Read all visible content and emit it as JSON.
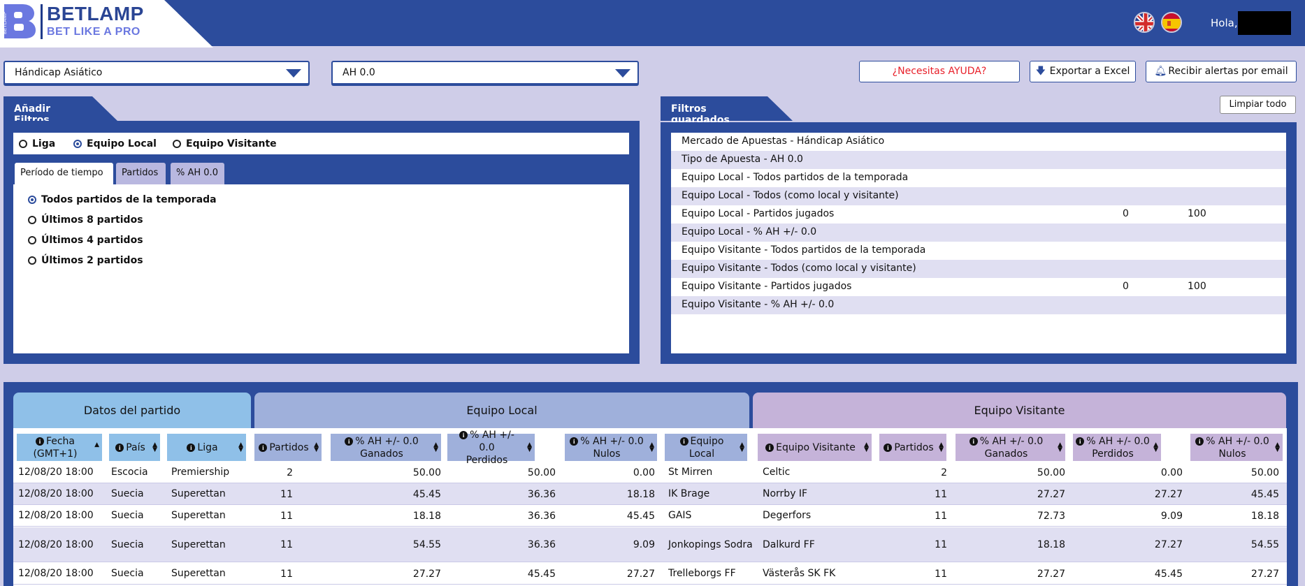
{
  "header": {
    "brand": "BETLAMP",
    "tagline": "BET LIKE A PRO",
    "logo_vertical_text": "BETLAMP",
    "greeting": "Hola,"
  },
  "selectors": {
    "market": "Hándicap Asiático",
    "bet_type": "AH 0.0"
  },
  "actions": {
    "help": "¿Necesitas AYUDA?",
    "export": "Exportar a Excel",
    "alerts": "Recibir alertas por email",
    "clear_all": "Limpiar todo"
  },
  "add_filters": {
    "title": "Añadir Filtros",
    "radios": [
      "Liga",
      "Equipo Local",
      "Equipo Visitante"
    ],
    "selected_radio": "Equipo Local",
    "tabs": [
      "Período de tiempo",
      "Partidos",
      "% AH 0.0"
    ],
    "active_tab": "Período de tiempo",
    "options": [
      "Todos partidos de la temporada",
      "Últimos 8 partidos",
      "Últimos 4 partidos",
      "Últimos 2 partidos"
    ],
    "selected_option": "Todos partidos de la temporada"
  },
  "saved_filters": {
    "title": "Filtros guardados",
    "rows": [
      {
        "label": "Mercado de Apuestas - Hándicap Asiático",
        "v1": "",
        "v2": ""
      },
      {
        "label": "Tipo de Apuesta - AH 0.0",
        "v1": "",
        "v2": ""
      },
      {
        "label": "Equipo Local - Todos partidos de la temporada",
        "v1": "",
        "v2": ""
      },
      {
        "label": "Equipo Local - Todos (como local y visitante)",
        "v1": "",
        "v2": ""
      },
      {
        "label": "Equipo Local - Partidos jugados",
        "v1": "0",
        "v2": "100"
      },
      {
        "label": "Equipo Local - % AH +/- 0.0",
        "v1": "",
        "v2": ""
      },
      {
        "label": "Equipo Visitante - Todos partidos de la temporada",
        "v1": "",
        "v2": ""
      },
      {
        "label": "Equipo Visitante - Todos (como local y visitante)",
        "v1": "",
        "v2": ""
      },
      {
        "label": "Equipo Visitante - Partidos jugados",
        "v1": "0",
        "v2": "100"
      },
      {
        "label": "Equipo Visitante - % AH +/- 0.0",
        "v1": "",
        "v2": ""
      }
    ]
  },
  "table": {
    "groups": [
      "Datos del partido",
      "Equipo Local",
      "Equipo Visitante"
    ],
    "columns": [
      {
        "l1": "Fecha",
        "l2": "(GMT+1)"
      },
      {
        "l1": "País",
        "l2": ""
      },
      {
        "l1": "Liga",
        "l2": ""
      },
      {
        "l1": "Partidos",
        "l2": ""
      },
      {
        "l1": "% AH +/- 0.0",
        "l2": "Ganados"
      },
      {
        "l1": "% AH +/- 0.0",
        "l2": "Perdidos"
      },
      {
        "l1": "% AH +/- 0.0",
        "l2": "Nulos"
      },
      {
        "l1": "Equipo",
        "l2": "Local"
      },
      {
        "l1": "Equipo Visitante",
        "l2": ""
      },
      {
        "l1": "Partidos",
        "l2": ""
      },
      {
        "l1": "% AH +/- 0.0",
        "l2": "Ganados"
      },
      {
        "l1": "% AH +/- 0.0",
        "l2": "Perdidos"
      },
      {
        "l1": "% AH +/- 0.0",
        "l2": "Nulos"
      }
    ],
    "rows": [
      [
        "12/08/20 18:00",
        "Escocia",
        "Premiership",
        "2",
        "50.00",
        "50.00",
        "0.00",
        "St Mirren",
        "Celtic",
        "2",
        "50.00",
        "0.00",
        "50.00"
      ],
      [
        "12/08/20 18:00",
        "Suecia",
        "Superettan",
        "11",
        "45.45",
        "36.36",
        "18.18",
        "IK Brage",
        "Norrby IF",
        "11",
        "27.27",
        "27.27",
        "45.45"
      ],
      [
        "12/08/20 18:00",
        "Suecia",
        "Superettan",
        "11",
        "18.18",
        "36.36",
        "45.45",
        "GAIS",
        "Degerfors",
        "11",
        "72.73",
        "9.09",
        "18.18"
      ],
      [
        "12/08/20 18:00",
        "Suecia",
        "Superettan",
        "11",
        "54.55",
        "36.36",
        "9.09",
        "Jonkopings Sodra",
        "Dalkurd FF",
        "11",
        "18.18",
        "27.27",
        "54.55"
      ],
      [
        "12/08/20 18:00",
        "Suecia",
        "Superettan",
        "11",
        "27.27",
        "45.45",
        "27.27",
        "Trelleborgs FF",
        "Västerås SK FK",
        "11",
        "27.27",
        "45.45",
        "27.27"
      ]
    ]
  },
  "colors": {
    "primary": "#2c4c9c",
    "background": "#cfcde8",
    "group_match": "#8fc0e8",
    "group_local": "#9fb0db",
    "group_visitor": "#c5b3d9",
    "help_text": "#e8202a"
  }
}
